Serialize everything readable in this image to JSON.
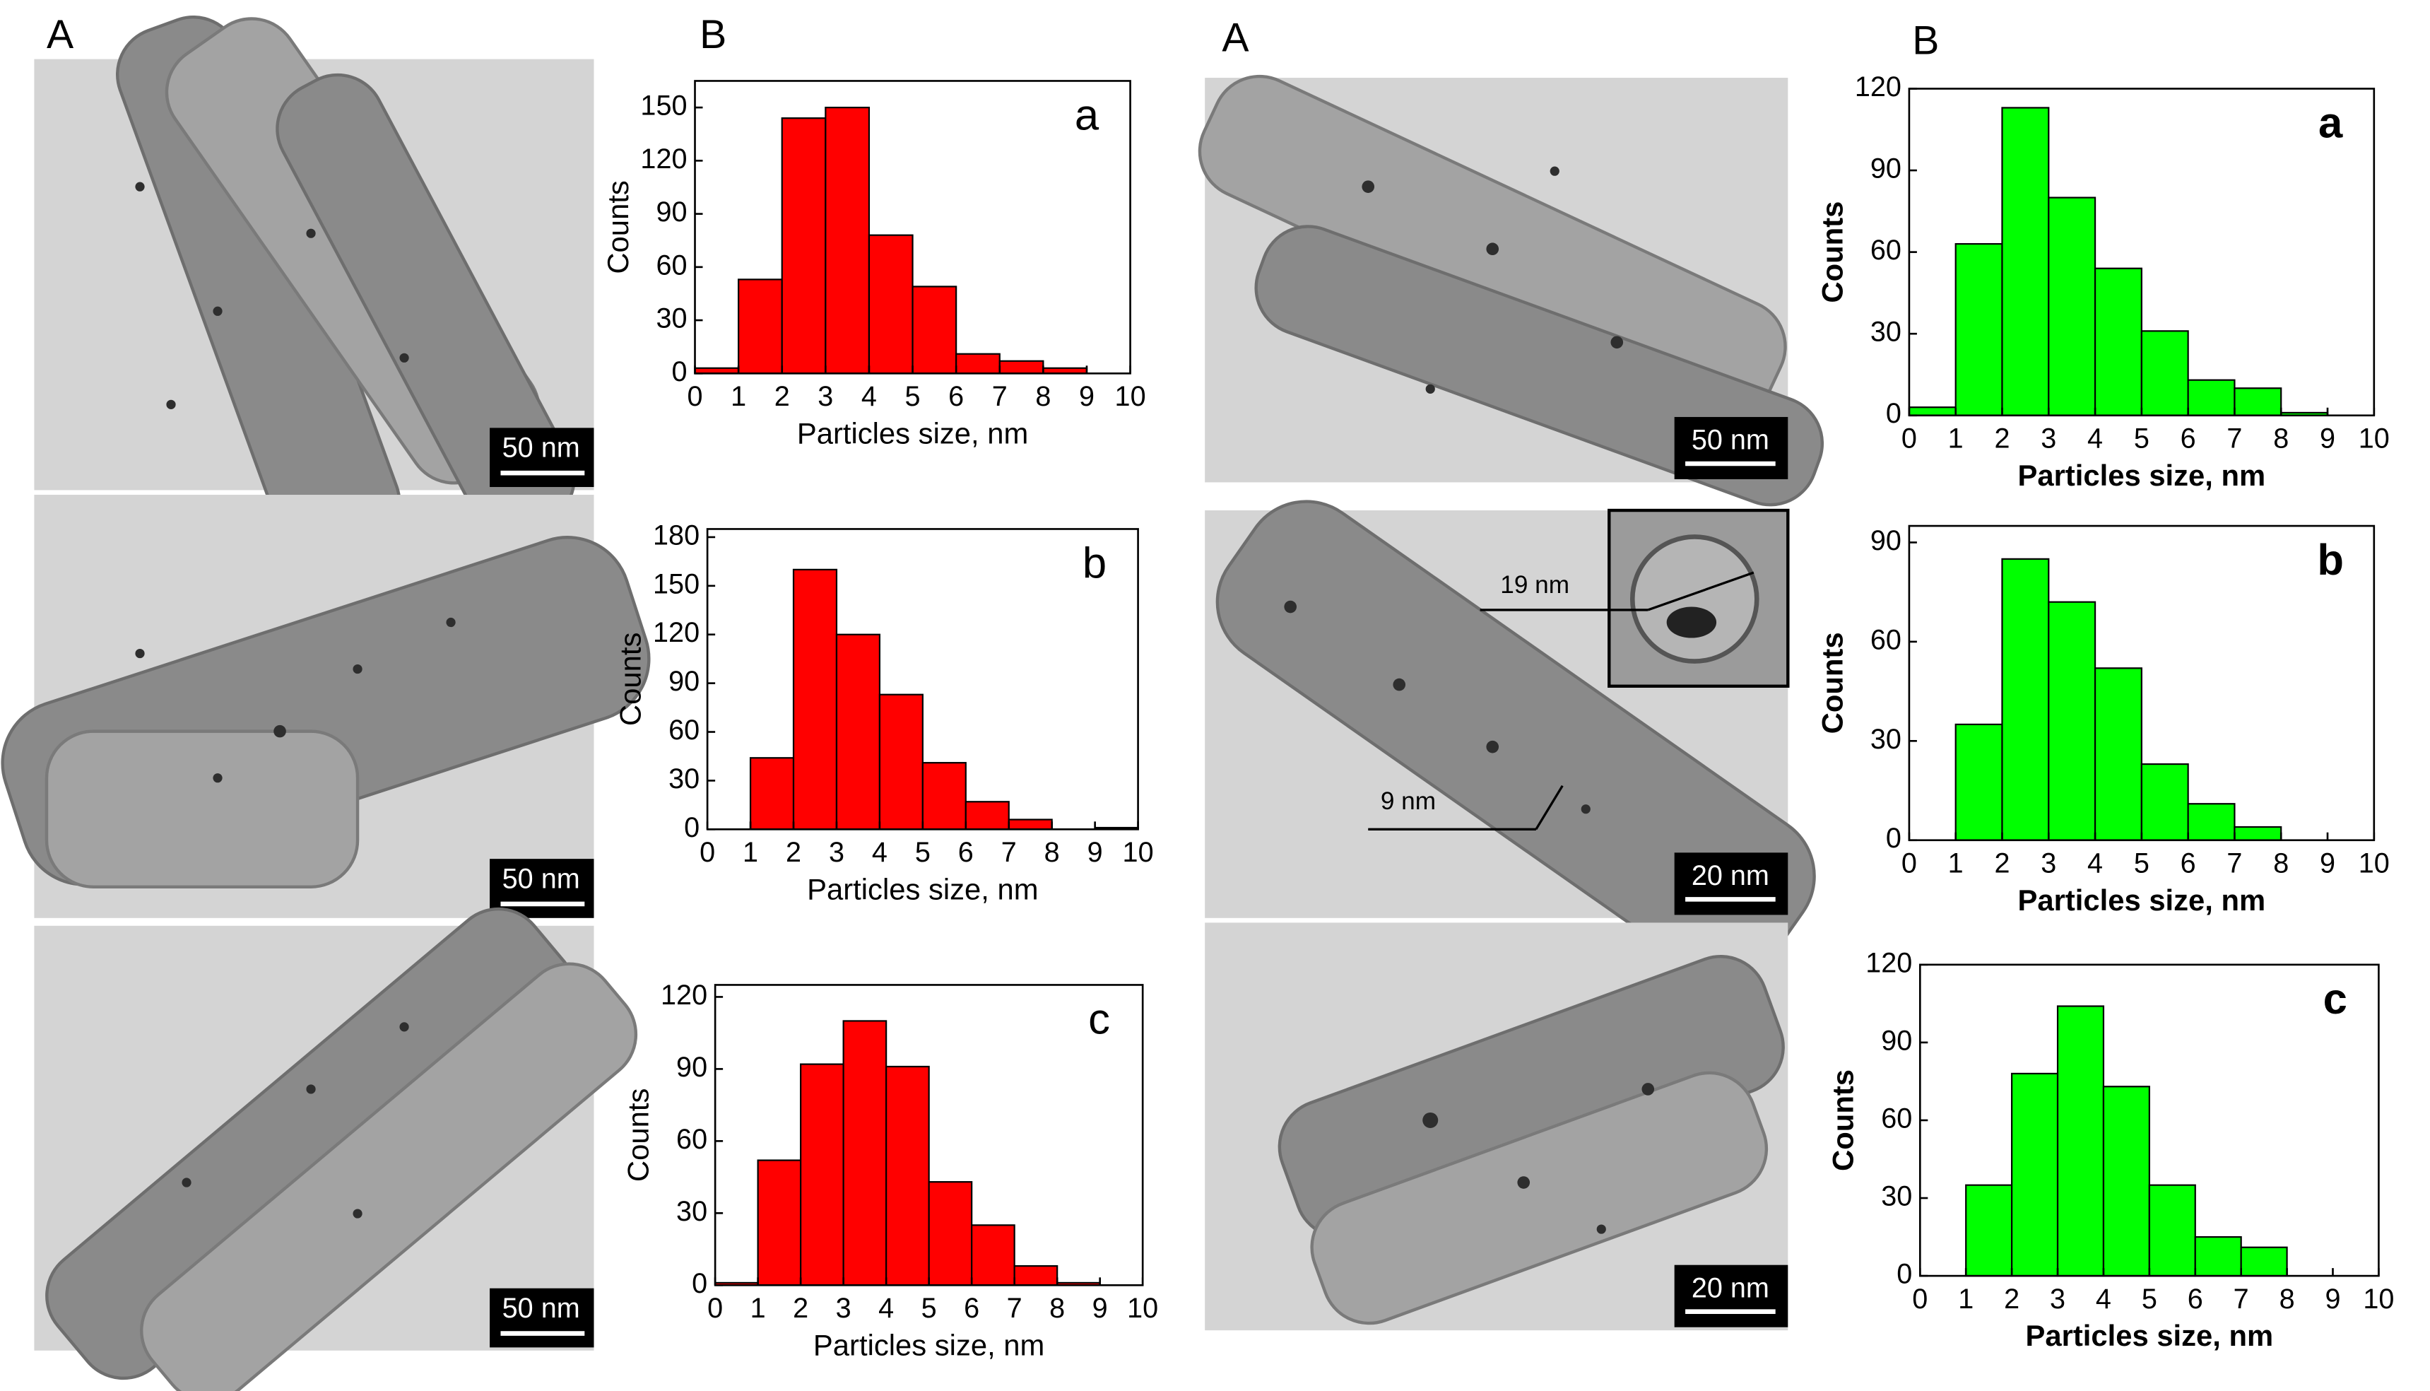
{
  "figure": {
    "panel_labels": [
      "A",
      "B",
      "A",
      "B"
    ],
    "scale_bars": [
      "50 nm",
      "50 nm",
      "50 nm",
      "50 nm",
      "20 nm",
      "20 nm"
    ],
    "annotations": [
      "19 nm",
      "9 nm"
    ]
  },
  "chart_data": [
    {
      "type": "histogram",
      "label": "a",
      "xlabel": "Particles size, nm",
      "ylabel": "Counts",
      "color": "#ff0000",
      "bins": [
        0,
        1,
        2,
        3,
        4,
        5,
        6,
        7,
        8,
        9,
        10
      ],
      "values": [
        3,
        53,
        144,
        150,
        78,
        49,
        11,
        7,
        3,
        0
      ],
      "xlim": [
        0,
        10
      ],
      "xticks": [
        0,
        1,
        2,
        3,
        4,
        5,
        6,
        7,
        8,
        9,
        10
      ],
      "ylim": [
        0,
        165
      ],
      "yticks": [
        0,
        30,
        60,
        90,
        120,
        150
      ]
    },
    {
      "type": "histogram",
      "label": "b",
      "xlabel": "Particles size, nm",
      "ylabel": "Counts",
      "color": "#ff0000",
      "bins": [
        0,
        1,
        2,
        3,
        4,
        5,
        6,
        7,
        8,
        9,
        10
      ],
      "values": [
        0,
        44,
        160,
        120,
        83,
        41,
        17,
        6,
        0,
        1
      ],
      "xlim": [
        0,
        10
      ],
      "xticks": [
        0,
        1,
        2,
        3,
        4,
        5,
        6,
        7,
        8,
        9,
        10
      ],
      "ylim": [
        0,
        185
      ],
      "yticks": [
        0,
        30,
        60,
        90,
        120,
        150,
        180
      ]
    },
    {
      "type": "histogram",
      "label": "c",
      "xlabel": "Particles size, nm",
      "ylabel": "Counts",
      "color": "#ff0000",
      "bins": [
        0,
        1,
        2,
        3,
        4,
        5,
        6,
        7,
        8,
        9,
        10
      ],
      "values": [
        1,
        52,
        92,
        110,
        91,
        43,
        25,
        8,
        1,
        0
      ],
      "xlim": [
        0,
        10
      ],
      "xticks": [
        0,
        1,
        2,
        3,
        4,
        5,
        6,
        7,
        8,
        9,
        10
      ],
      "ylim": [
        0,
        125
      ],
      "yticks": [
        0,
        30,
        60,
        90,
        120
      ]
    },
    {
      "type": "histogram",
      "label": "a",
      "xlabel": "Particles size, nm",
      "ylabel": "Counts",
      "color": "#00ff00",
      "bins": [
        0,
        1,
        2,
        3,
        4,
        5,
        6,
        7,
        8,
        9,
        10
      ],
      "values": [
        3,
        63,
        113,
        80,
        54,
        31,
        13,
        10,
        1,
        0
      ],
      "xlim": [
        0,
        10
      ],
      "xticks": [
        0,
        1,
        2,
        3,
        4,
        5,
        6,
        7,
        8,
        9,
        10
      ],
      "ylim": [
        0,
        120
      ],
      "yticks": [
        0,
        30,
        60,
        90,
        120
      ]
    },
    {
      "type": "histogram",
      "label": "b",
      "xlabel": "Particles size, nm",
      "ylabel": "Counts",
      "color": "#00ff00",
      "bins": [
        0,
        1,
        2,
        3,
        4,
        5,
        6,
        7,
        8,
        9,
        10
      ],
      "values": [
        0,
        35,
        85,
        72,
        52,
        23,
        11,
        4,
        0,
        0
      ],
      "xlim": [
        0,
        10
      ],
      "xticks": [
        0,
        1,
        2,
        3,
        4,
        5,
        6,
        7,
        8,
        9,
        10
      ],
      "ylim": [
        0,
        95
      ],
      "yticks": [
        0,
        30,
        60,
        90
      ]
    },
    {
      "type": "histogram",
      "label": "c",
      "xlabel": "Particles size, nm",
      "ylabel": "Counts",
      "color": "#00ff00",
      "bins": [
        0,
        1,
        2,
        3,
        4,
        5,
        6,
        7,
        8,
        9,
        10
      ],
      "values": [
        0,
        35,
        78,
        104,
        73,
        35,
        15,
        11,
        0,
        0
      ],
      "xlim": [
        0,
        10
      ],
      "xticks": [
        0,
        1,
        2,
        3,
        4,
        5,
        6,
        7,
        8,
        9,
        10
      ],
      "ylim": [
        0,
        120
      ],
      "yticks": [
        0,
        30,
        60,
        90,
        120
      ]
    }
  ]
}
